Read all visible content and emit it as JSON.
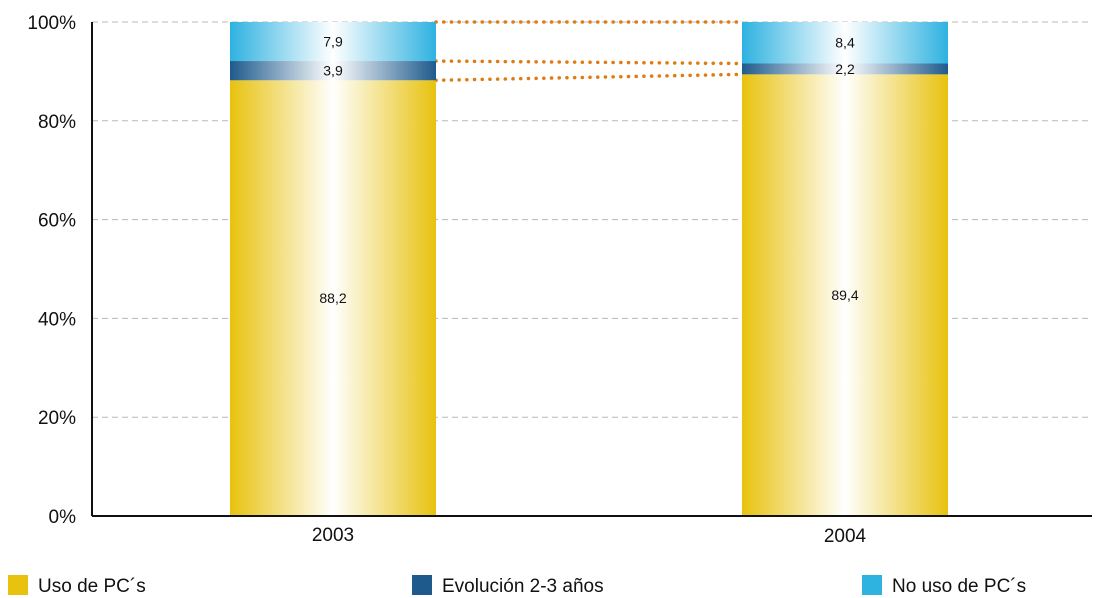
{
  "chart_data": {
    "type": "bar",
    "stacked": true,
    "percent": true,
    "categories": [
      "2003",
      "2004"
    ],
    "series": [
      {
        "name": "Uso de PC´s",
        "values": [
          88.2,
          89.4
        ],
        "labels": [
          "88,2",
          "89,4"
        ],
        "color": "#E8C20E"
      },
      {
        "name": "Evolución 2-3 años",
        "values": [
          3.9,
          2.2
        ],
        "labels": [
          "3,9",
          "2,2"
        ],
        "color": "#1F5A8C"
      },
      {
        "name": "No uso de PC´s",
        "values": [
          7.9,
          8.4
        ],
        "labels": [
          "7,9",
          "8,4"
        ],
        "color": "#2EB2E0"
      }
    ],
    "yticks": [
      "0%",
      "20%",
      "40%",
      "60%",
      "80%",
      "100%"
    ],
    "ylim": [
      0,
      100
    ],
    "grid": true,
    "connector_color": "#E07B12",
    "legend": "bottom"
  }
}
